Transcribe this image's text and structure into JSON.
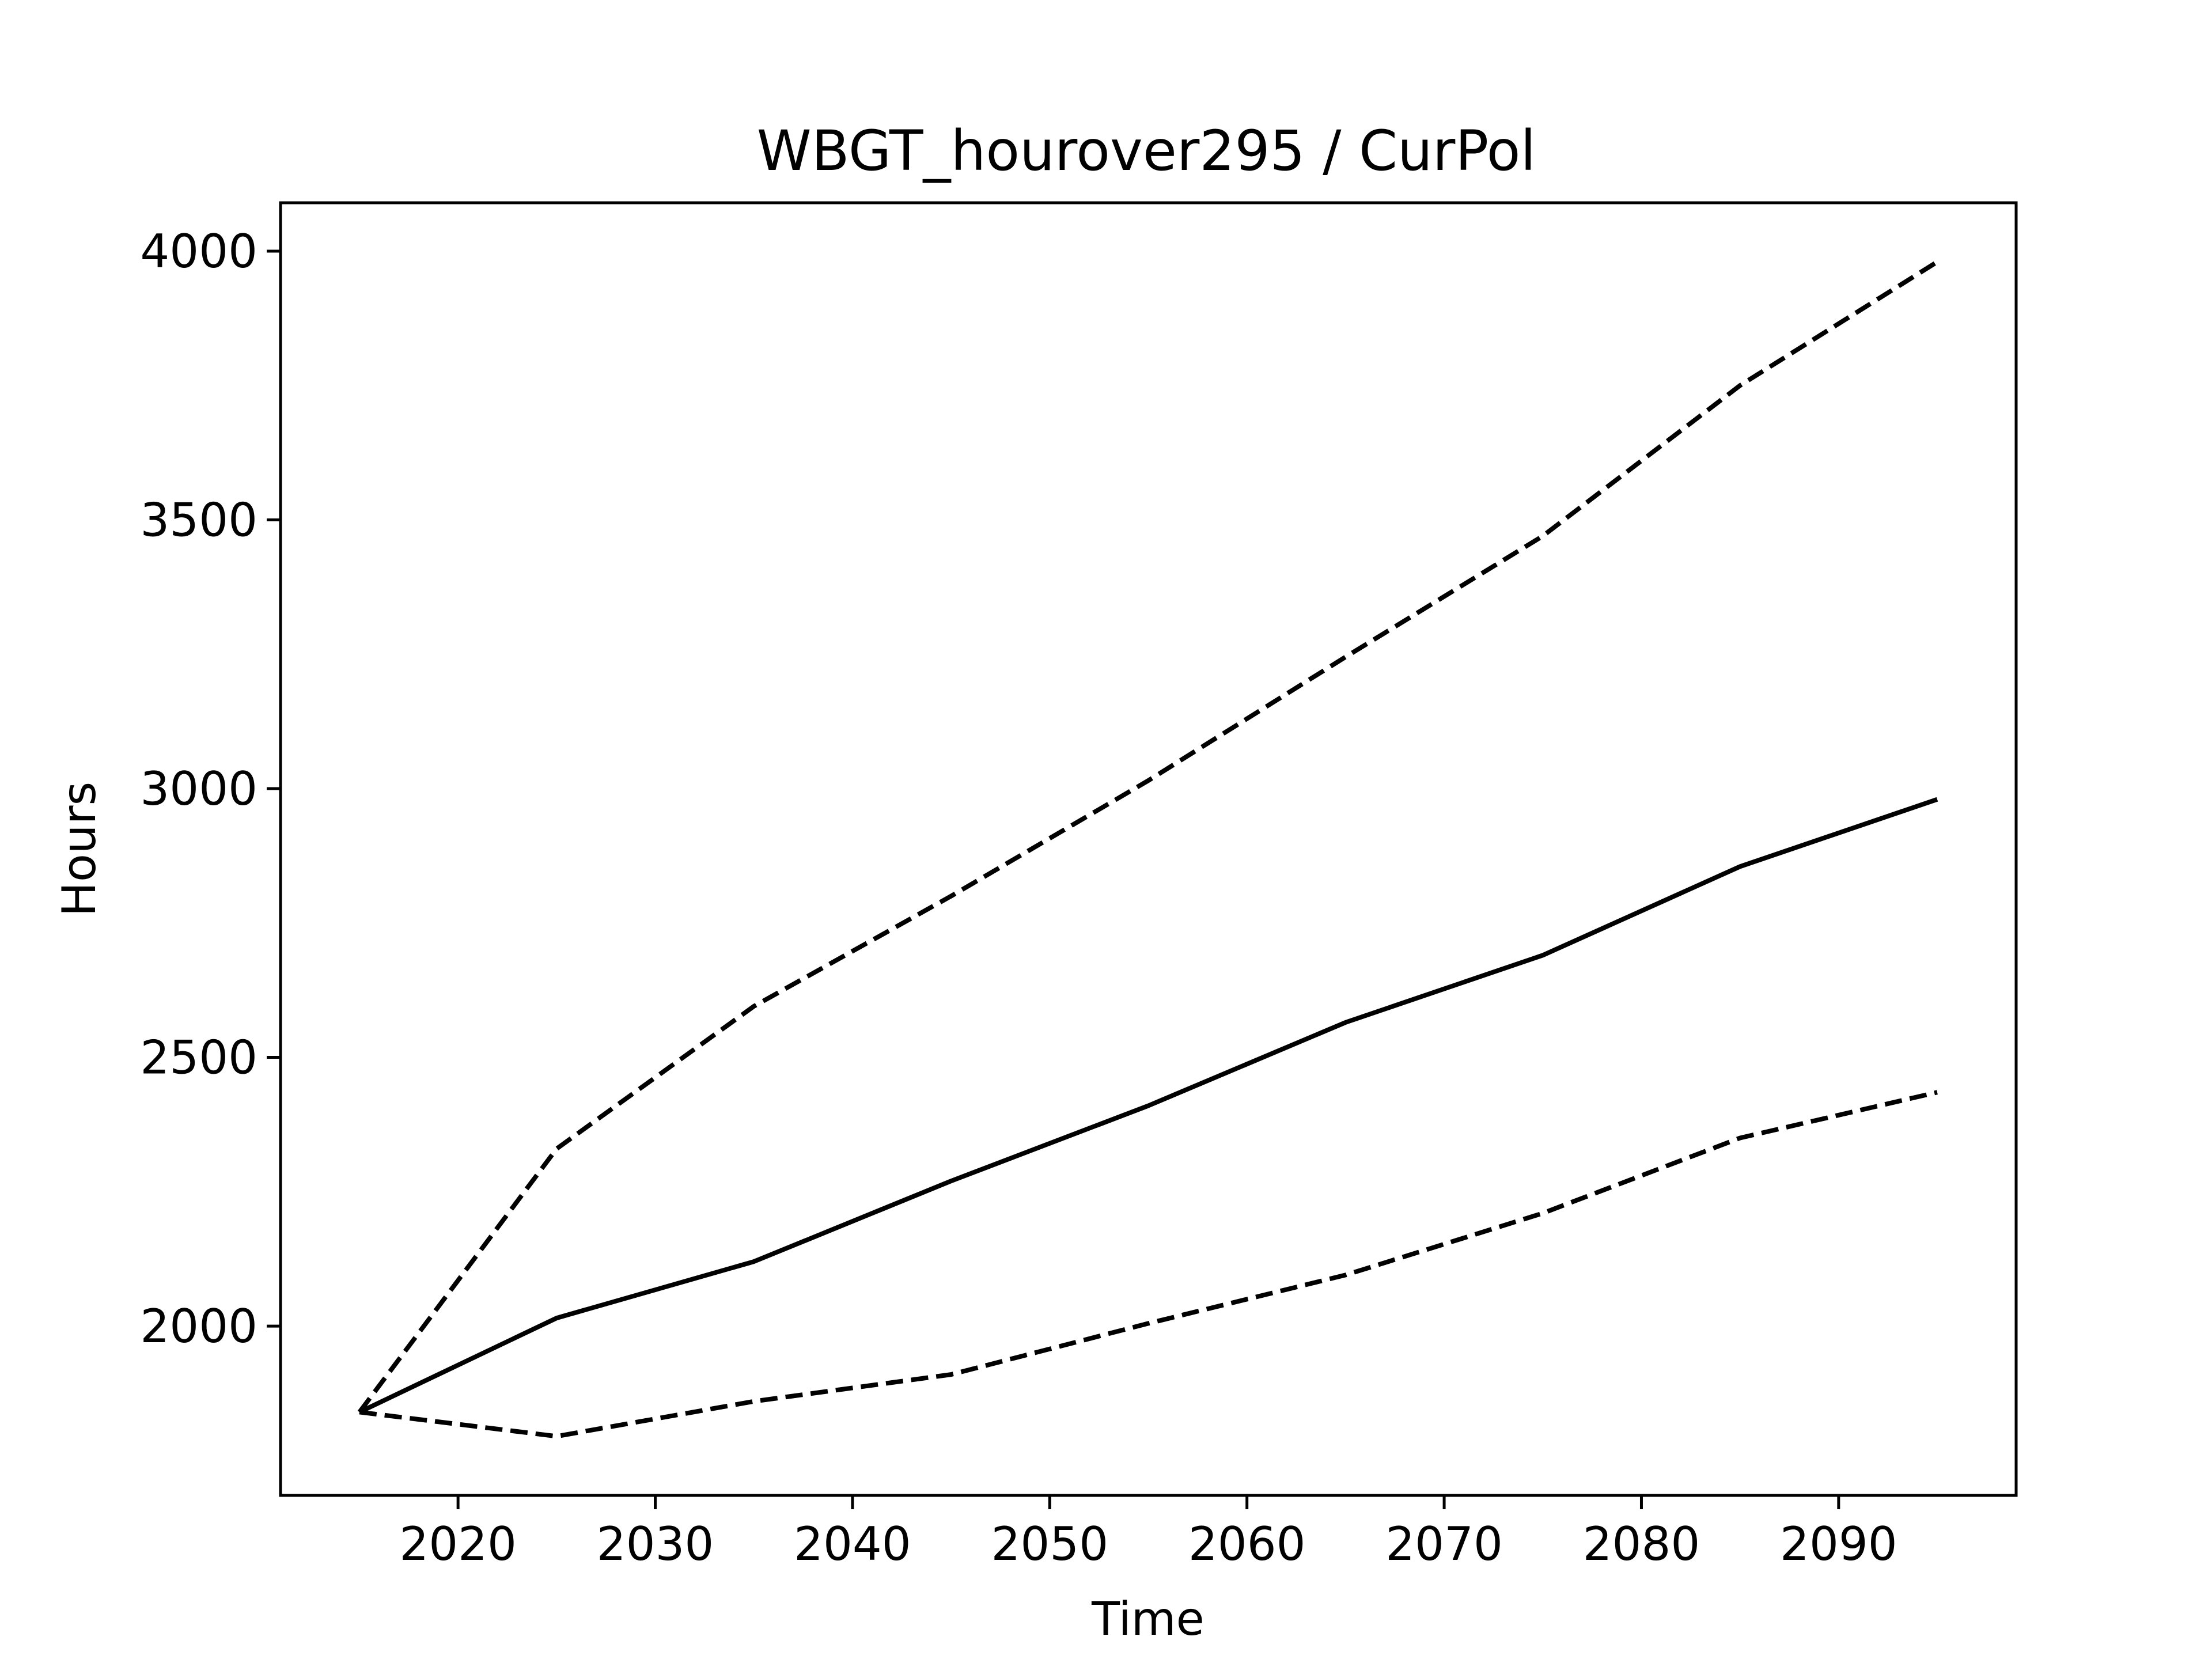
{
  "chart_data": {
    "type": "line",
    "title": "WBGT_hourover295 / CurPol",
    "xlabel": "Time",
    "ylabel": "Hours",
    "xlim": [
      2011,
      2099
    ],
    "ylim": [
      1685,
      4090
    ],
    "x_ticks": [
      2020,
      2030,
      2040,
      2050,
      2060,
      2070,
      2080,
      2090
    ],
    "y_ticks": [
      2000,
      2500,
      3000,
      3500,
      4000
    ],
    "grid": false,
    "legend": "none",
    "color": "#000000",
    "x": [
      2015,
      2025,
      2035,
      2045,
      2055,
      2065,
      2075,
      2085,
      2095
    ],
    "series": [
      {
        "style": "dashed",
        "values": [
          1840,
          2330,
          2595,
          2800,
          3015,
          3245,
          3470,
          3750,
          3980
        ]
      },
      {
        "style": "solid",
        "values": [
          1840,
          2015,
          2120,
          2270,
          2410,
          2565,
          2690,
          2855,
          2980
        ]
      },
      {
        "style": "dashed",
        "values": [
          1840,
          1795,
          1860,
          1910,
          2005,
          2095,
          2210,
          2350,
          2435
        ]
      }
    ]
  }
}
